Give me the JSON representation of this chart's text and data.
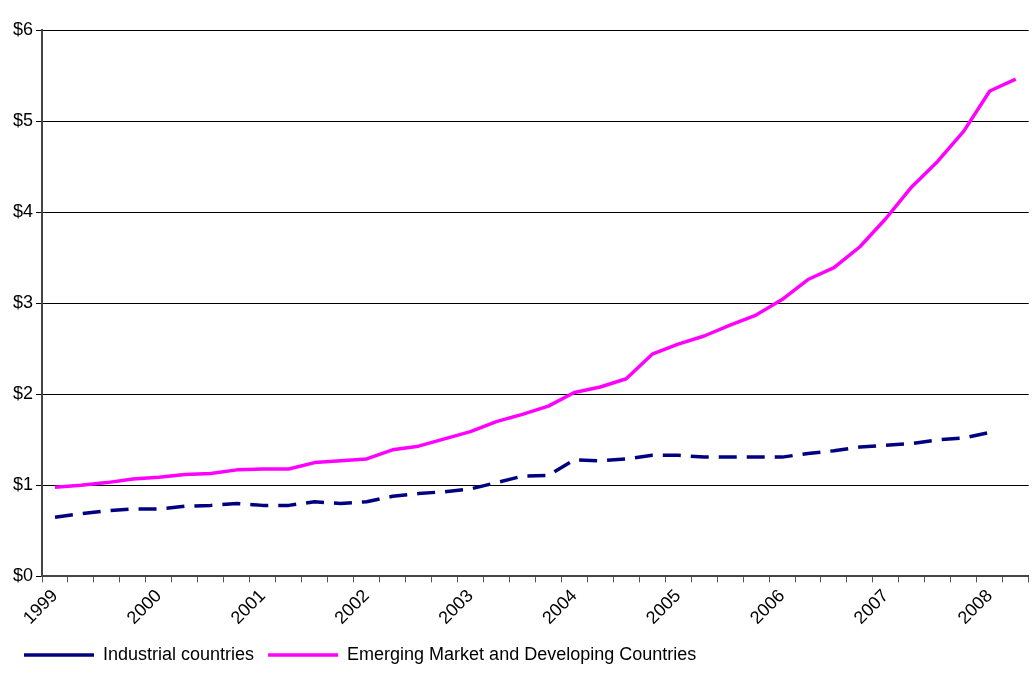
{
  "chart_data": {
    "type": "line",
    "categories": [
      "1999",
      null,
      null,
      null,
      "2000",
      null,
      null,
      null,
      "2001",
      null,
      null,
      null,
      "2002",
      null,
      null,
      null,
      "2003",
      null,
      null,
      null,
      "2004",
      null,
      null,
      null,
      "2005",
      null,
      null,
      null,
      "2006",
      null,
      null,
      null,
      "2007",
      null,
      null,
      null,
      "2008",
      null
    ],
    "series": [
      {
        "name": "Industrial countries",
        "color": "#000080",
        "line_style": "dashed",
        "values": [
          0.65,
          0.69,
          0.72,
          0.74,
          0.74,
          0.77,
          0.78,
          0.8,
          0.78,
          0.78,
          0.82,
          0.8,
          0.82,
          0.88,
          0.91,
          0.93,
          0.96,
          1.03,
          1.1,
          1.11,
          1.28,
          1.27,
          1.29,
          1.33,
          1.33,
          1.31,
          1.31,
          1.31,
          1.31,
          1.35,
          1.38,
          1.42,
          1.44,
          1.46,
          1.5,
          1.52,
          1.58,
          null
        ]
      },
      {
        "name": "Emerging Market and Developing Countries",
        "color": "#ff00ff",
        "line_style": "solid",
        "values": [
          0.98,
          1.0,
          1.03,
          1.07,
          1.09,
          1.12,
          1.13,
          1.17,
          1.18,
          1.18,
          1.25,
          1.27,
          1.29,
          1.39,
          1.43,
          1.51,
          1.59,
          1.7,
          1.78,
          1.87,
          2.02,
          2.08,
          2.17,
          2.44,
          2.55,
          2.64,
          2.76,
          2.87,
          3.04,
          3.26,
          3.39,
          3.62,
          3.93,
          4.28,
          4.56,
          4.89,
          5.33,
          5.46
        ]
      }
    ],
    "ylim": [
      0,
      6
    ],
    "yticks": [
      {
        "value": 0,
        "label": "$0"
      },
      {
        "value": 1,
        "label": "$1"
      },
      {
        "value": 2,
        "label": "$2"
      },
      {
        "value": 3,
        "label": "$3"
      },
      {
        "value": 4,
        "label": "$4"
      },
      {
        "value": 5,
        "label": "$5"
      },
      {
        "value": 6,
        "label": "$6"
      }
    ],
    "grid": "y",
    "legend": "bottom",
    "marker": "none"
  }
}
